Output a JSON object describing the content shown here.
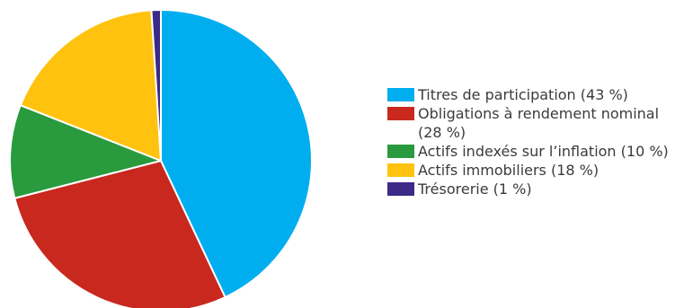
{
  "chart_data": {
    "type": "pie",
    "categories": [
      "Titres de participation (43 %)",
      "Obligations à rendement nominal (28 %)",
      "Actifs indexés sur l’inflation (10 %)",
      "Actifs immobiliers (18 %)",
      "Trésorerie (1 %)"
    ],
    "values": [
      43,
      28,
      10,
      18,
      1
    ],
    "colors": [
      "#00AEEF",
      "#C8281E",
      "#2A9A3E",
      "#FFC20E",
      "#3B2A86"
    ],
    "start_angle_deg": 0,
    "direction": "clockwise",
    "legend_position": "right"
  }
}
